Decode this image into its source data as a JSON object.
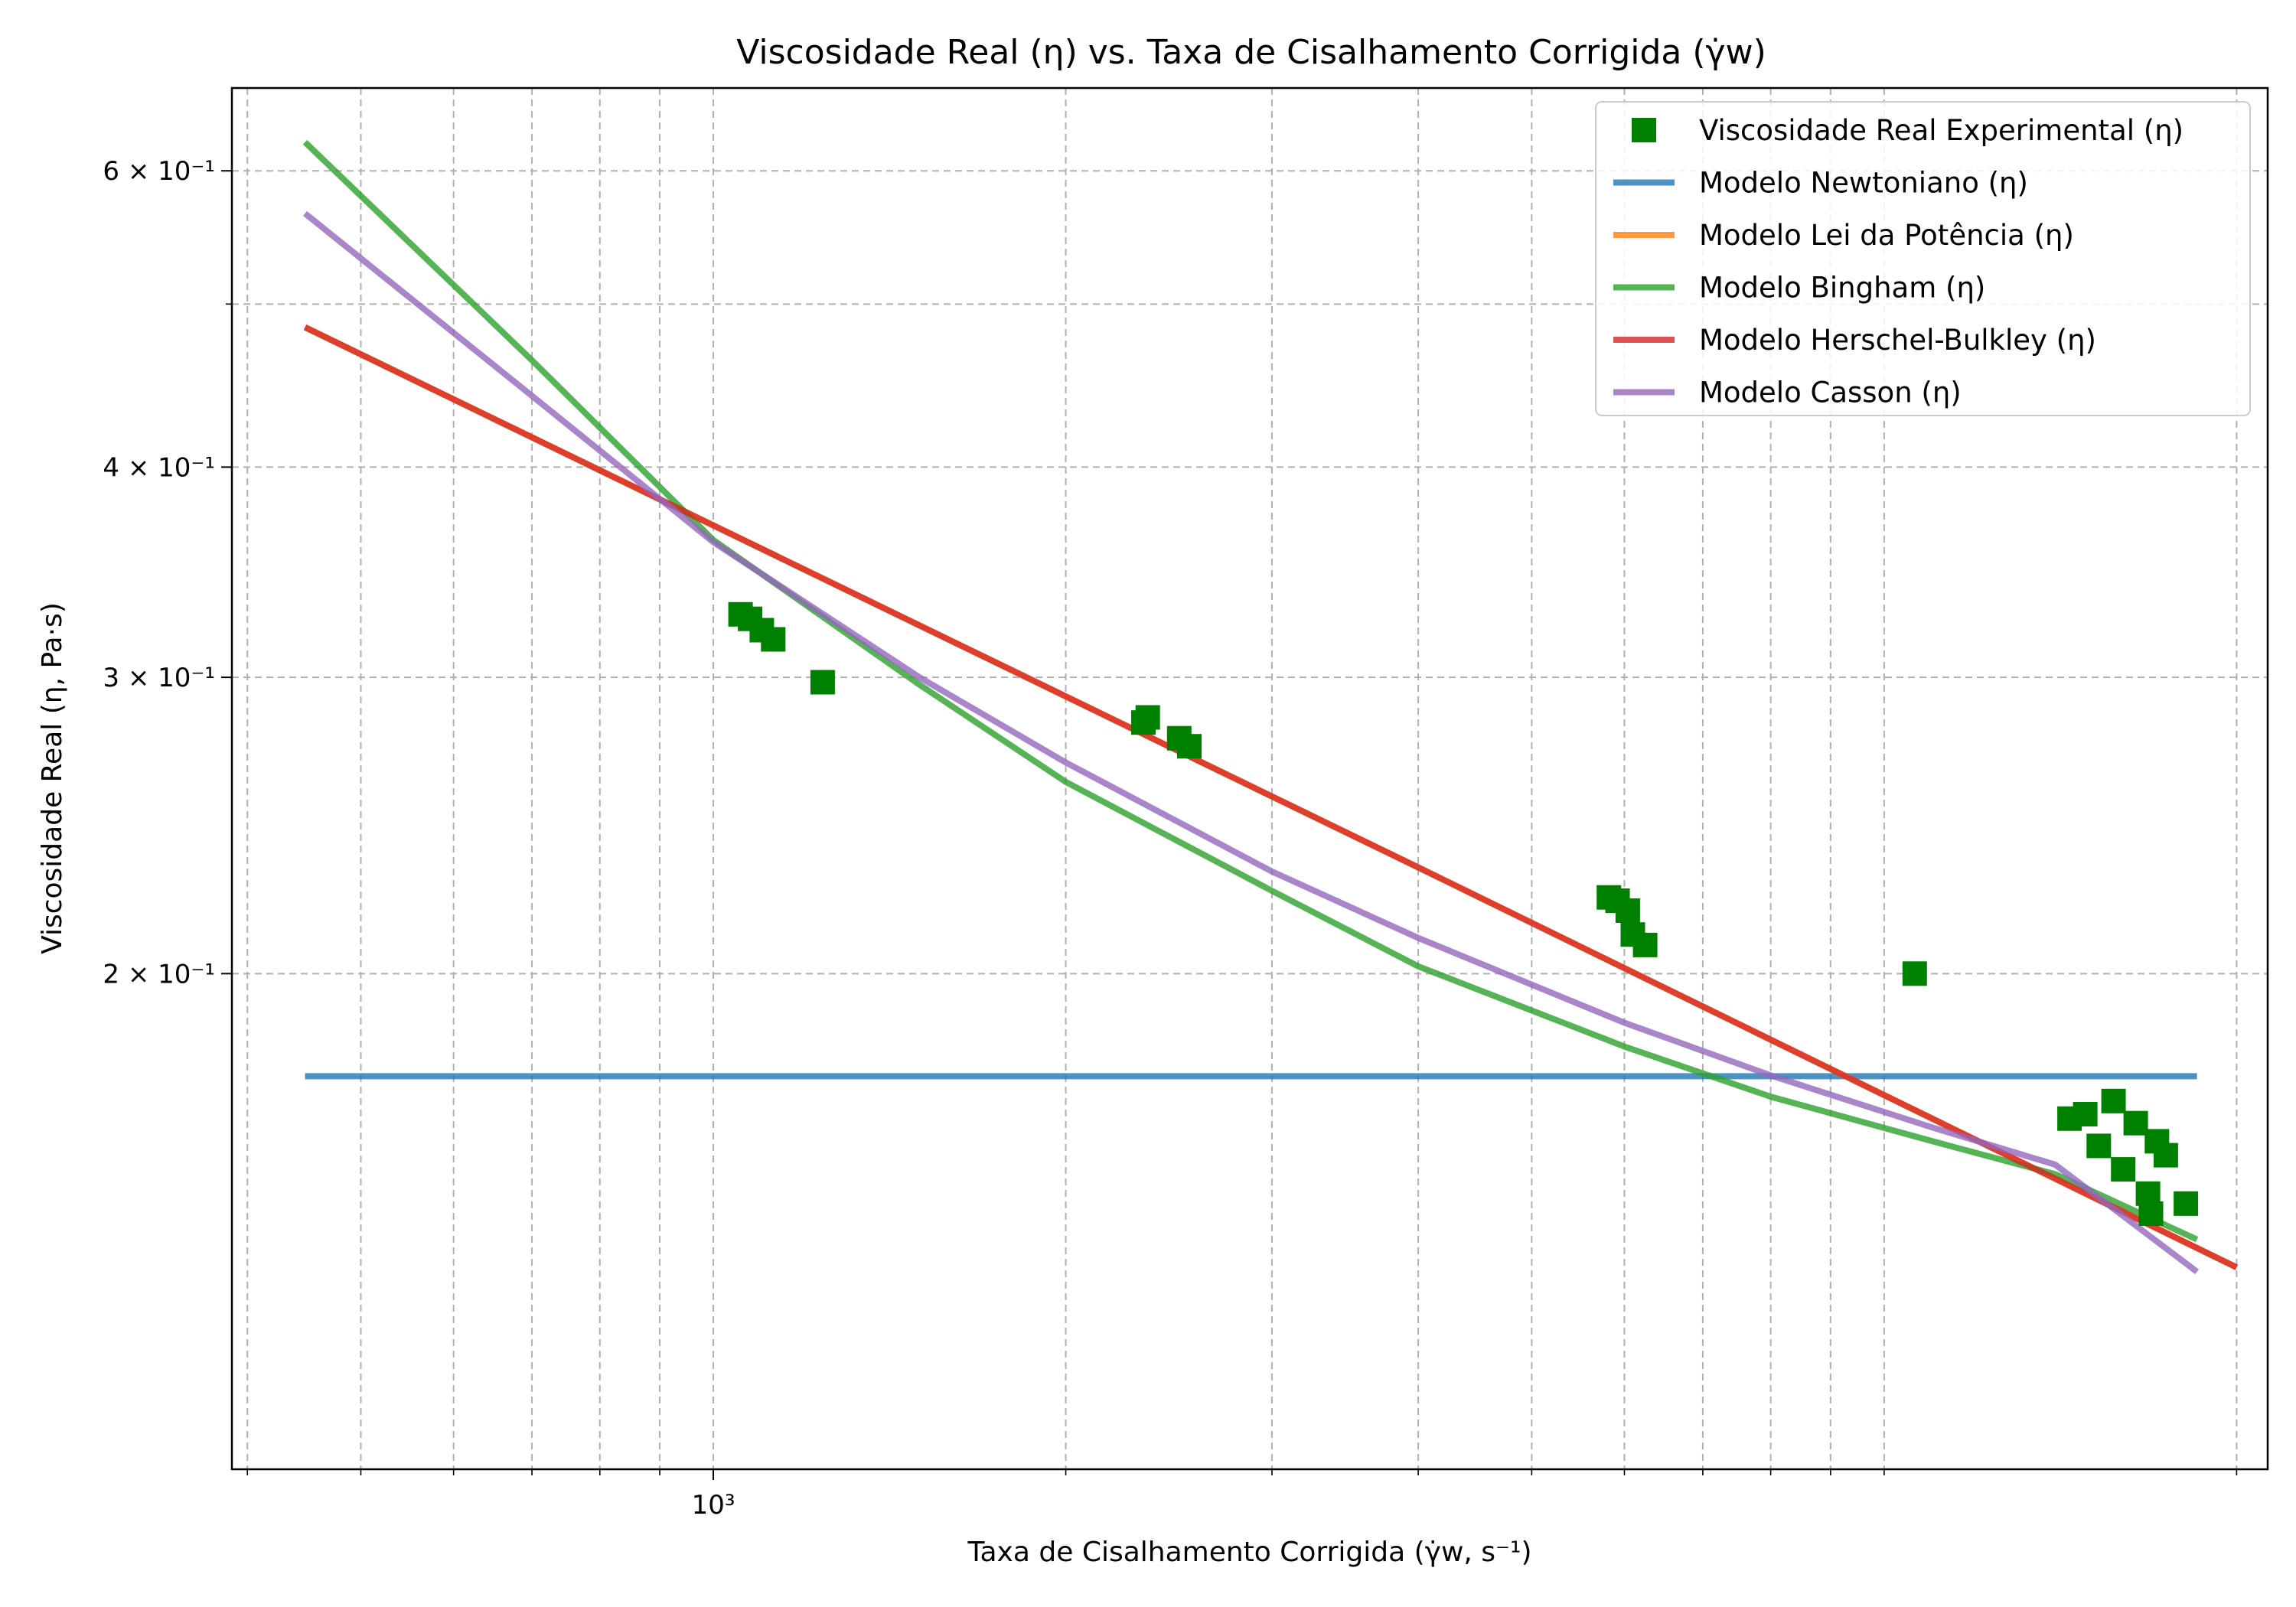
{
  "chart_data": {
    "type": "line",
    "title": "Viscosidade Real (η) vs. Taxa de Cisalhamento Corrigida (γ̇w)",
    "xlabel": "Taxa de Cisalhamento Corrigida (γ̇w, s⁻¹)",
    "ylabel": "Viscosidade Real (η, Pa·s)",
    "xscale": "log",
    "yscale": "log",
    "xlim": [
      388,
      21260
    ],
    "ylim": [
      0.1015,
      0.672
    ],
    "grid": true,
    "legend_position": "top-right",
    "x_major_ticks": [
      {
        "value": 1000,
        "label": "10³"
      }
    ],
    "y_major_ticks": [
      {
        "value": 0.2,
        "label": "2 × 10⁻¹"
      },
      {
        "value": 0.3,
        "label": "3 × 10⁻¹"
      },
      {
        "value": 0.4,
        "label": "4 × 10⁻¹"
      },
      {
        "value": 0.6,
        "label": "6 × 10⁻¹"
      }
    ],
    "x_minor_grid": [
      400,
      500,
      600,
      700,
      800,
      900,
      2000,
      3000,
      4000,
      5000,
      6000,
      7000,
      8000,
      9000,
      10000,
      20000
    ],
    "y_minor_grid": [
      0.5
    ],
    "scatter": {
      "name": "Viscosidade Real Experimental (η)",
      "color": "#008000",
      "marker": "square",
      "points": [
        [
          1055,
          0.327
        ],
        [
          1075,
          0.325
        ],
        [
          1100,
          0.32
        ],
        [
          1125,
          0.316
        ],
        [
          1240,
          0.298
        ],
        [
          2330,
          0.282
        ],
        [
          2350,
          0.284
        ],
        [
          2500,
          0.276
        ],
        [
          2550,
          0.273
        ],
        [
          5820,
          0.222
        ],
        [
          5920,
          0.221
        ],
        [
          6040,
          0.218
        ],
        [
          6100,
          0.211
        ],
        [
          6250,
          0.208
        ],
        [
          10620,
          0.2
        ],
        [
          14400,
          0.164
        ],
        [
          14850,
          0.165
        ],
        [
          15250,
          0.158
        ],
        [
          15700,
          0.168
        ],
        [
          16000,
          0.153
        ],
        [
          16400,
          0.163
        ],
        [
          16800,
          0.148
        ],
        [
          16900,
          0.144
        ],
        [
          17100,
          0.159
        ],
        [
          17400,
          0.156
        ],
        [
          18100,
          0.146
        ]
      ]
    },
    "series": [
      {
        "name": "Modelo Newtoniano (η)",
        "color": "#1f77b4",
        "x": [
          448,
          18500
        ],
        "y": [
          0.1738,
          0.1738
        ]
      },
      {
        "name": "Modelo Lei da Potência (η)",
        "color": "#ff7f0e",
        "x": [
          448,
          4000,
          20000
        ],
        "y": [
          0.4844,
          0.2313,
          0.1338
        ]
      },
      {
        "name": "Modelo Bingham (η)",
        "color": "#2ca02c",
        "x": [
          448,
          700,
          1000,
          1500,
          2000,
          3000,
          4000,
          6000,
          8000,
          11000,
          14000,
          18500
        ],
        "y": [
          0.624,
          0.463,
          0.362,
          0.297,
          0.26,
          0.224,
          0.202,
          0.181,
          0.169,
          0.159,
          0.152,
          0.139
        ]
      },
      {
        "name": "Modelo Herschel-Bulkley (η)",
        "color": "#d62728",
        "x": [
          448,
          4000,
          20000
        ],
        "y": [
          0.4844,
          0.2313,
          0.1338
        ]
      },
      {
        "name": "Modelo Casson (η)",
        "color": "#9467bd",
        "x": [
          448,
          700,
          1000,
          1500,
          2000,
          3000,
          4000,
          6000,
          8000,
          11000,
          14000,
          18500
        ],
        "y": [
          0.566,
          0.441,
          0.361,
          0.3,
          0.267,
          0.23,
          0.21,
          0.187,
          0.174,
          0.162,
          0.154,
          0.133
        ]
      }
    ],
    "legend": [
      {
        "label": "Viscosidade Real Experimental (η)",
        "kind": "marker",
        "color": "#008000"
      },
      {
        "label": "Modelo Newtoniano (η)",
        "kind": "line",
        "color": "#1f77b4"
      },
      {
        "label": "Modelo Lei da Potência (η)",
        "kind": "line",
        "color": "#ff7f0e"
      },
      {
        "label": "Modelo Bingham (η)",
        "kind": "line",
        "color": "#2ca02c"
      },
      {
        "label": "Modelo Herschel-Bulkley (η)",
        "kind": "line",
        "color": "#d62728"
      },
      {
        "label": "Modelo Casson (η)",
        "kind": "line",
        "color": "#9467bd"
      }
    ]
  }
}
